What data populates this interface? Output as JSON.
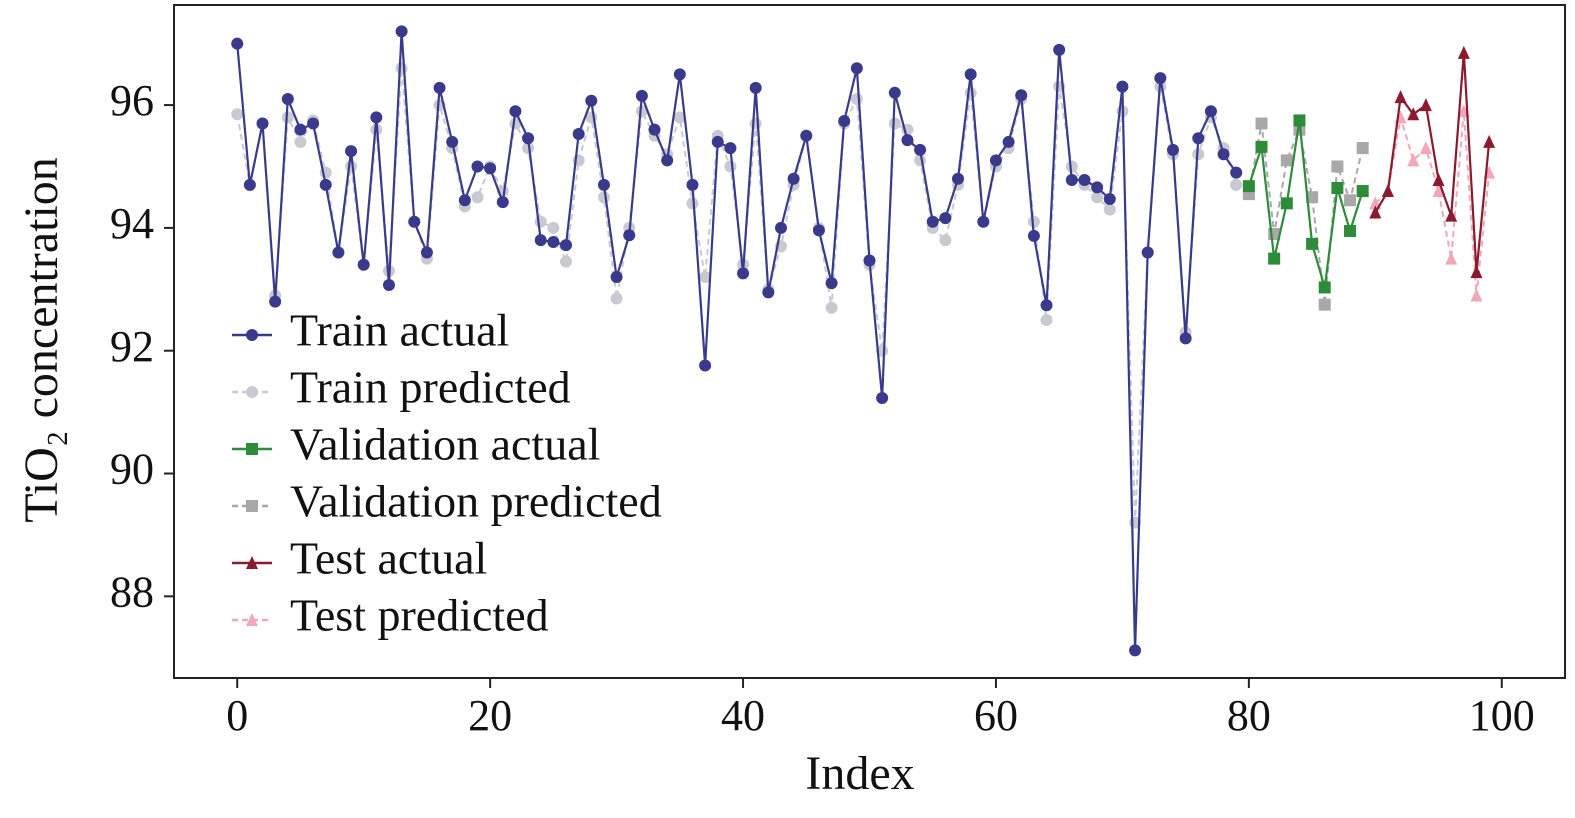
{
  "chart_data": {
    "type": "line",
    "xlabel": "Index",
    "ylabel": "TiO₂ concentration",
    "xlim": [
      -5,
      105
    ],
    "ylim": [
      86.67,
      97.63
    ],
    "xticks": [
      0,
      20,
      40,
      60,
      80,
      100
    ],
    "yticks": [
      88,
      90,
      92,
      94,
      96
    ],
    "legend": "lower left",
    "series": [
      {
        "name": "Train actual",
        "color": "#3a3a8c",
        "marker": "circle",
        "dashed": false,
        "x": [
          0,
          1,
          2,
          3,
          4,
          5,
          6,
          7,
          8,
          9,
          10,
          11,
          12,
          13,
          14,
          15,
          16,
          17,
          18,
          19,
          20,
          21,
          22,
          23,
          24,
          25,
          26,
          27,
          28,
          29,
          30,
          31,
          32,
          33,
          34,
          35,
          36,
          37,
          38,
          39,
          40,
          41,
          42,
          43,
          44,
          45,
          46,
          47,
          48,
          49,
          50,
          51,
          52,
          53,
          54,
          55,
          56,
          57,
          58,
          59,
          60,
          61,
          62,
          63,
          64,
          65,
          66,
          67,
          68,
          69,
          70,
          71,
          72,
          73,
          74,
          75,
          76,
          77,
          78,
          79
        ],
        "values": [
          97.0,
          94.7,
          95.7,
          92.8,
          96.1,
          95.6,
          95.7,
          94.7,
          93.6,
          95.25,
          93.4,
          95.8,
          93.07,
          97.2,
          94.1,
          93.6,
          96.28,
          95.4,
          94.45,
          95.0,
          94.97,
          94.42,
          95.9,
          95.46,
          93.8,
          93.77,
          93.72,
          95.53,
          96.07,
          94.7,
          93.2,
          93.88,
          96.15,
          95.6,
          95.1,
          96.5,
          94.7,
          91.76,
          95.4,
          95.3,
          93.26,
          96.28,
          92.95,
          94.0,
          94.8,
          95.5,
          93.96,
          93.1,
          95.74,
          96.6,
          93.47,
          91.23,
          96.2,
          95.43,
          95.27,
          94.1,
          94.16,
          94.8,
          96.5,
          94.1,
          95.1,
          95.4,
          96.16,
          93.87,
          92.74,
          96.9,
          94.78,
          94.78,
          94.66,
          94.47,
          96.3,
          87.12,
          93.6,
          96.44,
          95.27,
          92.2,
          95.46,
          95.9,
          95.2,
          94.9
        ]
      },
      {
        "name": "Train predicted",
        "color": "#c9c9d2",
        "marker": "circle",
        "dashed": true,
        "x": [
          0,
          1,
          2,
          3,
          4,
          5,
          6,
          7,
          8,
          9,
          10,
          11,
          12,
          13,
          14,
          15,
          16,
          17,
          18,
          19,
          20,
          21,
          22,
          23,
          24,
          25,
          26,
          27,
          28,
          29,
          30,
          31,
          32,
          33,
          34,
          35,
          36,
          37,
          38,
          39,
          40,
          41,
          42,
          43,
          44,
          45,
          46,
          47,
          48,
          49,
          50,
          51,
          52,
          53,
          54,
          55,
          56,
          57,
          58,
          59,
          60,
          61,
          62,
          63,
          64,
          65,
          66,
          67,
          68,
          69,
          70,
          71,
          72,
          73,
          74,
          75,
          76,
          77,
          78,
          79
        ],
        "values": [
          95.85,
          94.7,
          95.7,
          92.9,
          95.8,
          95.4,
          95.75,
          94.9,
          93.6,
          95.0,
          93.4,
          95.6,
          93.3,
          96.6,
          94.1,
          93.5,
          96.0,
          95.3,
          94.35,
          94.5,
          95.0,
          94.6,
          95.7,
          95.3,
          94.1,
          94.0,
          93.45,
          95.1,
          95.8,
          94.5,
          92.85,
          94.0,
          95.9,
          95.5,
          95.2,
          95.8,
          94.4,
          93.2,
          95.5,
          95.0,
          93.4,
          95.7,
          93.0,
          93.7,
          94.7,
          95.5,
          94.0,
          92.7,
          95.7,
          96.1,
          93.4,
          92.0,
          95.7,
          95.6,
          95.1,
          94.0,
          93.8,
          94.7,
          96.2,
          94.1,
          95.0,
          95.3,
          96.1,
          94.1,
          92.5,
          96.3,
          95.0,
          94.7,
          94.5,
          94.3,
          95.9,
          89.2,
          93.6,
          96.3,
          95.2,
          92.3,
          95.2,
          95.8,
          95.3,
          94.7
        ]
      },
      {
        "name": "Validation actual",
        "color": "#2e8b3a",
        "marker": "square",
        "dashed": false,
        "x": [
          80,
          81,
          82,
          83,
          84,
          85,
          86,
          87,
          88,
          89
        ],
        "values": [
          94.68,
          95.32,
          93.5,
          94.4,
          95.75,
          93.74,
          93.03,
          94.65,
          93.95,
          94.6
        ]
      },
      {
        "name": "Validation predicted",
        "color": "#a8a8a8",
        "marker": "square",
        "dashed": true,
        "x": [
          80,
          81,
          82,
          83,
          84,
          85,
          86,
          87,
          88,
          89
        ],
        "values": [
          94.55,
          95.7,
          93.9,
          95.1,
          95.6,
          94.5,
          92.75,
          95.0,
          94.45,
          95.3
        ]
      },
      {
        "name": "Test actual",
        "color": "#8b1a2e",
        "marker": "triangle",
        "dashed": false,
        "x": [
          90,
          91,
          92,
          93,
          94,
          95,
          96,
          97,
          98,
          99
        ],
        "values": [
          94.25,
          94.6,
          96.13,
          95.85,
          96.0,
          94.78,
          94.2,
          96.85,
          93.28,
          95.4
        ]
      },
      {
        "name": "Test predicted",
        "color": "#f0a8b8",
        "marker": "triangle",
        "dashed": true,
        "x": [
          90,
          91,
          92,
          93,
          94,
          95,
          96,
          97,
          98,
          99
        ],
        "values": [
          94.4,
          94.6,
          95.8,
          95.1,
          95.3,
          94.6,
          93.5,
          95.9,
          92.9,
          94.9
        ]
      }
    ]
  }
}
